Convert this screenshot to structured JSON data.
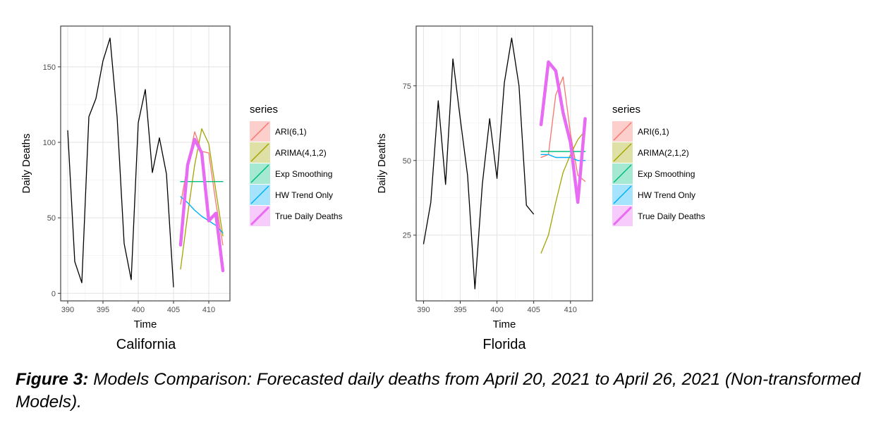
{
  "caption": {
    "label": "Figure 3:",
    "text": " Models Comparison: Forecasted daily deaths from April 20, 2021 to April 26, 2021 (Non-transformed Models)."
  },
  "chart_data": [
    {
      "type": "line",
      "title": "California",
      "xlabel": "Time",
      "ylabel": "Daily Deaths",
      "xlim": [
        389,
        413
      ],
      "ylim": [
        -5,
        177
      ],
      "xticks": [
        390,
        395,
        400,
        405,
        410
      ],
      "yticks": [
        0,
        50,
        100,
        150
      ],
      "grid": true,
      "legend_title": "series",
      "legend_position": "right",
      "history": {
        "x": [
          390,
          391,
          392,
          393,
          394,
          395,
          396,
          397,
          398,
          399,
          400,
          401,
          402,
          403,
          404,
          405
        ],
        "values": [
          108,
          21,
          7,
          117,
          129,
          154,
          169,
          117,
          33,
          9,
          113,
          135,
          80,
          103,
          79,
          4
        ],
        "color": "#000000"
      },
      "series": [
        {
          "name": "ARI(6,1)",
          "color": "#F8766D",
          "x": [
            406,
            407,
            408,
            409,
            410,
            411,
            412
          ],
          "values": [
            59,
            85,
            107,
            94,
            93,
            60,
            32
          ]
        },
        {
          "name": "ARIMA(4,1,2)",
          "color": "#A3A500",
          "x": [
            406,
            407,
            408,
            409,
            410,
            411,
            412
          ],
          "values": [
            16,
            52,
            85,
            109,
            99,
            68,
            38
          ]
        },
        {
          "name": "Exp Smoothing",
          "color": "#00BF7D",
          "x": [
            406,
            407,
            408,
            409,
            410,
            411,
            412
          ],
          "values": [
            74,
            74,
            74,
            74,
            74,
            74,
            74
          ]
        },
        {
          "name": "HW Trend Only",
          "color": "#00B0F6",
          "x": [
            406,
            407,
            408,
            409,
            410,
            411,
            412
          ],
          "values": [
            64,
            60,
            55,
            51,
            48,
            45,
            40
          ]
        },
        {
          "name": "True Daily Deaths",
          "color": "#E76BF3",
          "x": [
            406,
            407,
            408,
            409,
            410,
            411,
            412
          ],
          "values": [
            32,
            85,
            102,
            93,
            48,
            53,
            15
          ]
        }
      ]
    },
    {
      "type": "line",
      "title": "Florida",
      "xlabel": "Time",
      "ylabel": "Daily Deaths",
      "xlim": [
        389,
        413
      ],
      "ylim": [
        3,
        95
      ],
      "xticks": [
        390,
        395,
        400,
        405,
        410
      ],
      "yticks": [
        25,
        50,
        75
      ],
      "grid": true,
      "legend_title": "series",
      "legend_position": "right",
      "history": {
        "x": [
          390,
          391,
          392,
          393,
          394,
          395,
          396,
          397,
          398,
          399,
          400,
          401,
          402,
          403,
          404,
          405
        ],
        "values": [
          22,
          36,
          70,
          42,
          84,
          64,
          45,
          7,
          42,
          64,
          44,
          76,
          91,
          75,
          35,
          32
        ],
        "color": "#000000"
      },
      "series": [
        {
          "name": "ARI(6,1)",
          "color": "#F8766D",
          "x": [
            406,
            407,
            408,
            409,
            410,
            411,
            412
          ],
          "values": [
            51,
            52,
            72,
            78,
            59,
            45,
            43
          ]
        },
        {
          "name": "ARIMA(2,1,2)",
          "color": "#A3A500",
          "x": [
            406,
            407,
            408,
            409,
            410,
            411,
            412
          ],
          "values": [
            19,
            25,
            36,
            46,
            52,
            57,
            60
          ]
        },
        {
          "name": "Exp Smoothing",
          "color": "#00BF7D",
          "x": [
            406,
            407,
            408,
            409,
            410,
            411,
            412
          ],
          "values": [
            53,
            53,
            53,
            53,
            53,
            53,
            53
          ]
        },
        {
          "name": "HW Trend Only",
          "color": "#00B0F6",
          "x": [
            406,
            407,
            408,
            409,
            410,
            411,
            412
          ],
          "values": [
            52,
            52,
            51,
            51,
            51,
            50,
            50
          ]
        },
        {
          "name": "True Daily Deaths",
          "color": "#E76BF3",
          "x": [
            406,
            407,
            408,
            409,
            410,
            411,
            412
          ],
          "values": [
            62,
            83,
            80,
            66,
            56,
            36,
            64
          ]
        }
      ]
    }
  ]
}
